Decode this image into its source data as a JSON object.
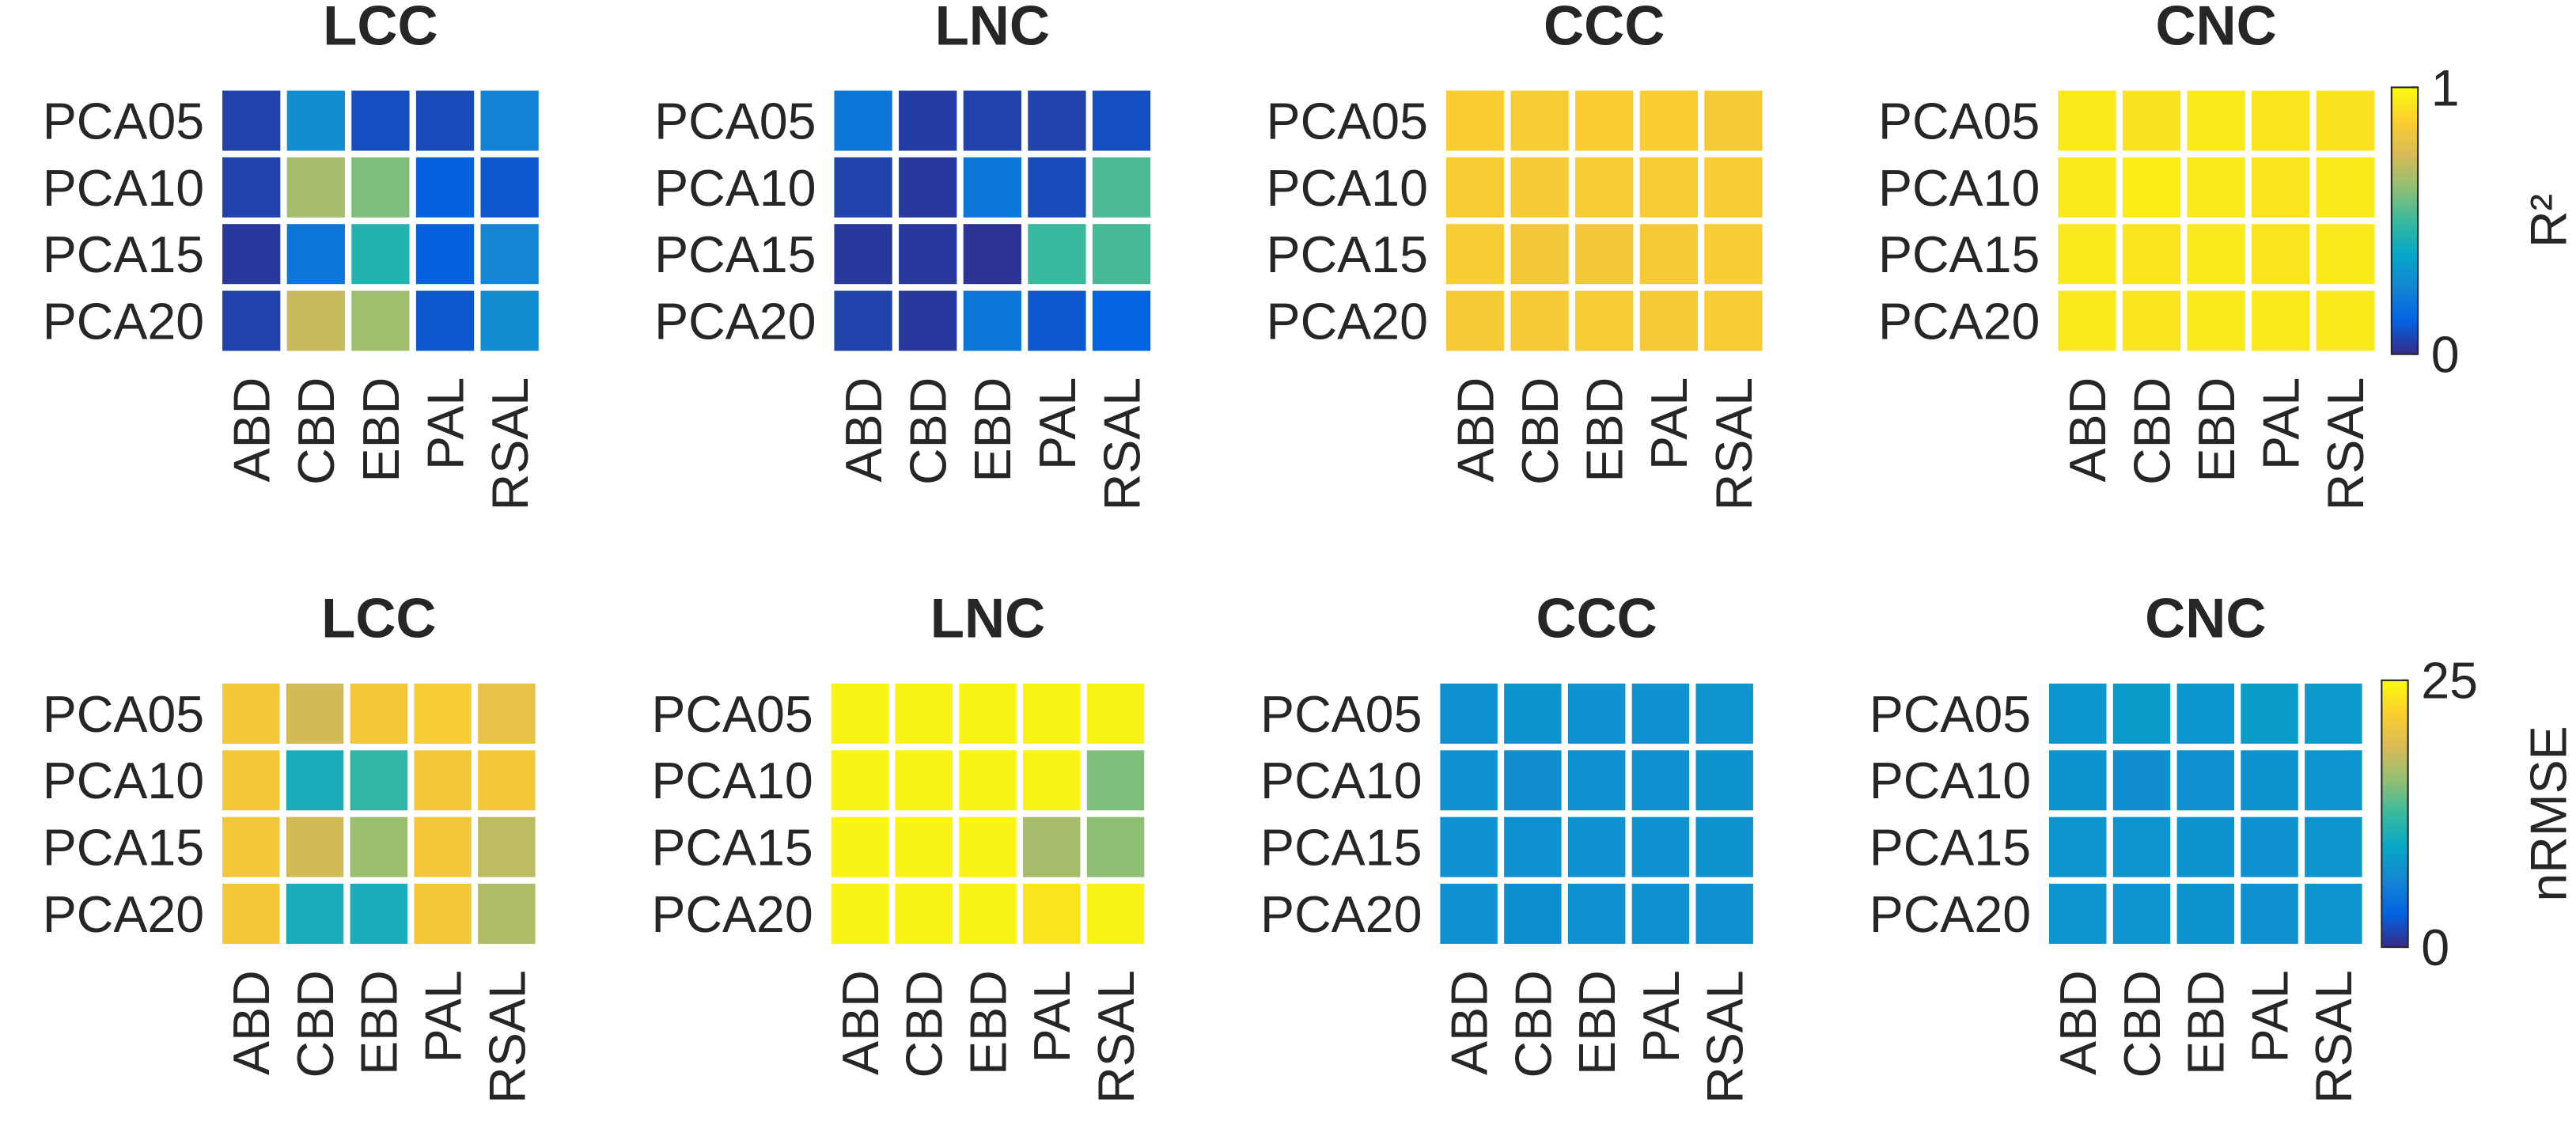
{
  "chart_data": [
    {
      "type": "heatmap",
      "title": "LCC",
      "categories": [
        "ABD",
        "CBD",
        "EBD",
        "PAL",
        "RSAL"
      ],
      "rows": [
        "PCA05",
        "PCA10",
        "PCA15",
        "PCA20"
      ],
      "values": [
        [
          0.05,
          0.28,
          0.08,
          0.07,
          0.24
        ],
        [
          0.05,
          0.66,
          0.6,
          0.12,
          0.1
        ],
        [
          0.03,
          0.2,
          0.45,
          0.12,
          0.25
        ],
        [
          0.05,
          0.72,
          0.65,
          0.1,
          0.28
        ]
      ],
      "clim": [
        0,
        1
      ]
    },
    {
      "type": "heatmap",
      "title": "LNC",
      "categories": [
        "ABD",
        "CBD",
        "EBD",
        "PAL",
        "RSAL"
      ],
      "rows": [
        "PCA05",
        "PCA10",
        "PCA15",
        "PCA20"
      ],
      "values": [
        [
          0.2,
          0.04,
          0.05,
          0.05,
          0.08
        ],
        [
          0.05,
          0.03,
          0.2,
          0.07,
          0.53
        ],
        [
          0.03,
          0.03,
          0.02,
          0.5,
          0.52
        ],
        [
          0.05,
          0.03,
          0.2,
          0.1,
          0.13
        ]
      ],
      "clim": [
        0,
        1
      ]
    },
    {
      "type": "heatmap",
      "title": "CCC",
      "categories": [
        "ABD",
        "CBD",
        "EBD",
        "PAL",
        "RSAL"
      ],
      "rows": [
        "PCA05",
        "PCA10",
        "PCA15",
        "PCA20"
      ],
      "values": [
        [
          0.87,
          0.86,
          0.87,
          0.87,
          0.85
        ],
        [
          0.86,
          0.85,
          0.86,
          0.86,
          0.86
        ],
        [
          0.86,
          0.84,
          0.84,
          0.85,
          0.86
        ],
        [
          0.85,
          0.85,
          0.86,
          0.85,
          0.86
        ]
      ],
      "clim": [
        0,
        1
      ]
    },
    {
      "type": "heatmap",
      "title": "CNC",
      "categories": [
        "ABD",
        "CBD",
        "EBD",
        "PAL",
        "RSAL"
      ],
      "rows": [
        "PCA05",
        "PCA10",
        "PCA15",
        "PCA20"
      ],
      "values": [
        [
          0.95,
          0.93,
          0.95,
          0.94,
          0.93
        ],
        [
          0.95,
          0.96,
          0.95,
          0.94,
          0.95
        ],
        [
          0.95,
          0.94,
          0.95,
          0.94,
          0.95
        ],
        [
          0.95,
          0.94,
          0.95,
          0.95,
          0.95
        ]
      ],
      "clim": [
        0,
        1
      ],
      "colorbar": {
        "label": "R²",
        "ticks": [
          0,
          1
        ]
      }
    },
    {
      "type": "heatmap",
      "title": "LCC",
      "categories": [
        "ABD",
        "CBD",
        "EBD",
        "PAL",
        "RSAL"
      ],
      "rows": [
        "PCA05",
        "PCA10",
        "PCA15",
        "PCA20"
      ],
      "values": [
        [
          21,
          18.5,
          21,
          21.5,
          20
        ],
        [
          21,
          10.5,
          12,
          21,
          21
        ],
        [
          21,
          18.5,
          16,
          21,
          17.5
        ],
        [
          21,
          10.5,
          10.5,
          21,
          17
        ]
      ],
      "clim": [
        0,
        25
      ]
    },
    {
      "type": "heatmap",
      "title": "LNC",
      "categories": [
        "ABD",
        "CBD",
        "EBD",
        "PAL",
        "RSAL"
      ],
      "rows": [
        "PCA05",
        "PCA10",
        "PCA15",
        "PCA20"
      ],
      "values": [
        [
          24.5,
          24.5,
          24.5,
          24.5,
          24.5
        ],
        [
          24.5,
          24.5,
          24.5,
          24.5,
          15
        ],
        [
          24.5,
          24.5,
          24.5,
          16.5,
          15.5
        ],
        [
          24.5,
          24.5,
          24.5,
          23.5,
          24.5
        ]
      ],
      "clim": [
        0,
        25
      ]
    },
    {
      "type": "heatmap",
      "title": "CCC",
      "categories": [
        "ABD",
        "CBD",
        "EBD",
        "PAL",
        "RSAL"
      ],
      "rows": [
        "PCA05",
        "PCA10",
        "PCA15",
        "PCA20"
      ],
      "values": [
        [
          7.3,
          7.5,
          7.4,
          7.4,
          7.6
        ],
        [
          7.4,
          7,
          7.3,
          7.3,
          7.5
        ],
        [
          7.4,
          7.3,
          7.4,
          7.4,
          7.5
        ],
        [
          7.4,
          7.2,
          7.3,
          7.4,
          7.4
        ]
      ],
      "clim": [
        0,
        25
      ]
    },
    {
      "type": "heatmap",
      "title": "CNC",
      "categories": [
        "ABD",
        "CBD",
        "EBD",
        "PAL",
        "RSAL"
      ],
      "rows": [
        "PCA05",
        "PCA10",
        "PCA15",
        "PCA20"
      ],
      "values": [
        [
          7.8,
          8.3,
          7.8,
          8.5,
          8.1
        ],
        [
          7.5,
          7,
          7.3,
          7.5,
          7.6
        ],
        [
          7.7,
          7.6,
          7.5,
          7.4,
          7.7
        ],
        [
          7.6,
          7.6,
          7.5,
          7.4,
          7.6
        ]
      ],
      "clim": [
        0,
        25
      ],
      "colorbar": {
        "label": "nRMSE",
        "ticks": [
          0,
          25
        ]
      }
    }
  ]
}
